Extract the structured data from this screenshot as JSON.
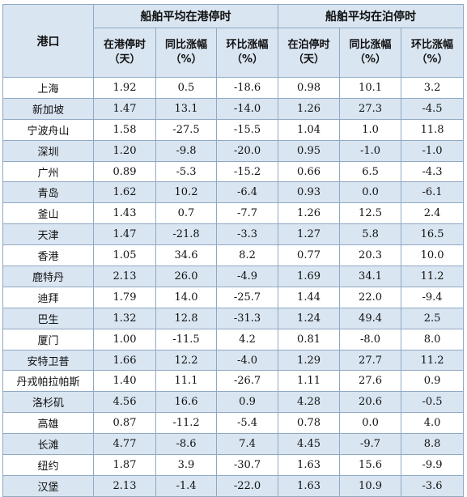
{
  "header": {
    "port": "港口",
    "group_port": "船舶平均在港停时",
    "group_berth": "船舶平均在泊停时",
    "cols": [
      {
        "line1": "在港停时",
        "line2": "（天）"
      },
      {
        "line1": "同比涨幅",
        "line2": "（%）"
      },
      {
        "line1": "环比涨幅",
        "line2": "（%）"
      },
      {
        "line1": "在泊停时",
        "line2": "（天）"
      },
      {
        "line1": "同比涨幅",
        "line2": "（%）"
      },
      {
        "line1": "环比涨幅",
        "line2": "（%）"
      }
    ]
  },
  "rows": [
    [
      "上海",
      "1.92",
      "0.5",
      "-18.6",
      "0.98",
      "10.1",
      "3.2"
    ],
    [
      "新加坡",
      "1.47",
      "13.1",
      "-14.0",
      "1.26",
      "27.3",
      "-4.5"
    ],
    [
      "宁波舟山",
      "1.58",
      "-27.5",
      "-15.5",
      "1.04",
      "1.0",
      "11.8"
    ],
    [
      "深圳",
      "1.20",
      "-9.8",
      "-20.0",
      "0.95",
      "-1.0",
      "-1.0"
    ],
    [
      "广州",
      "0.89",
      "-5.3",
      "-15.2",
      "0.66",
      "6.5",
      "-4.3"
    ],
    [
      "青岛",
      "1.62",
      "10.2",
      "-6.4",
      "0.93",
      "0.0",
      "-6.1"
    ],
    [
      "釜山",
      "1.43",
      "0.7",
      "-7.7",
      "1.26",
      "12.5",
      "2.4"
    ],
    [
      "天津",
      "1.47",
      "-21.8",
      "-3.3",
      "1.27",
      "5.8",
      "16.5"
    ],
    [
      "香港",
      "1.05",
      "34.6",
      "8.2",
      "0.77",
      "20.3",
      "10.0"
    ],
    [
      "鹿特丹",
      "2.13",
      "26.0",
      "-4.9",
      "1.69",
      "34.1",
      "11.2"
    ],
    [
      "迪拜",
      "1.79",
      "14.0",
      "-25.7",
      "1.44",
      "22.0",
      "-9.4"
    ],
    [
      "巴生",
      "1.32",
      "12.8",
      "-31.3",
      "1.24",
      "49.4",
      "2.5"
    ],
    [
      "厦门",
      "1.00",
      "-11.5",
      "4.2",
      "0.81",
      "-8.0",
      "8.0"
    ],
    [
      "安特卫普",
      "1.66",
      "12.2",
      "-4.0",
      "1.29",
      "27.7",
      "11.2"
    ],
    [
      "丹戎帕拉帕斯",
      "1.40",
      "11.1",
      "-26.7",
      "1.11",
      "27.6",
      "0.9"
    ],
    [
      "洛杉矶",
      "4.56",
      "16.6",
      "0.9",
      "4.28",
      "20.6",
      "-0.5"
    ],
    [
      "高雄",
      "0.87",
      "-11.2",
      "-5.4",
      "0.78",
      "0.0",
      "4.0"
    ],
    [
      "长滩",
      "4.77",
      "-8.6",
      "7.4",
      "4.45",
      "-9.7",
      "8.8"
    ],
    [
      "纽约",
      "1.87",
      "3.9",
      "-30.7",
      "1.63",
      "15.6",
      "-9.9"
    ],
    [
      "汉堡",
      "2.13",
      "-1.4",
      "-22.0",
      "1.63",
      "10.9",
      "-3.6"
    ]
  ]
}
